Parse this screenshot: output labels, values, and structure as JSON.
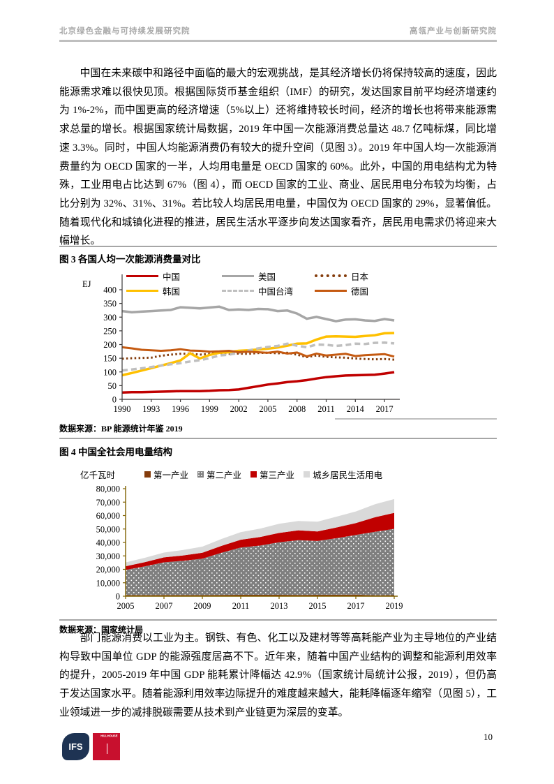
{
  "header": {
    "left": "北京绿色金融与可持续发展研究院",
    "right": "高瓴产业与创新研究院"
  },
  "paragraphs": {
    "p1": "中国在未来碳中和路径中面临的最大的宏观挑战，是其经济增长仍将保持较高的速度，因此能源需求难以很快见顶。根据国际货币基金组织（IMF）的研究，发达国家目前平均经济增速约为 1%-2%，而中国更高的经济增速（5%以上）还将维持较长时间，经济的增长也将带来能源需求总量的增长。根据国家统计局数据，2019 年中国一次能源消费总量达 48.7 亿吨标煤，同比增速 3.3%。同时，中国人均能源消费仍有较大的提升空间（见图 3）。2019 年中国人均一次能源消费量约为 OECD 国家的一半，人均用电量是 OECD 国家的 60%。此外，中国的用电结构尤为特殊，工业用电占比达到 67%（图 4），而 OECD 国家的工业、商业、居民用电分布较为均衡，占比分别为 32%、31%、31%。若比较人均居民用电量，中国仅为 OECD 国家的 29%，显著偏低。随着现代化和城镇化进程的推进，居民生活水平逐步向发达国家看齐，居民用电需求仍将迎来大幅增长。",
    "p2": "部门能源消费以工业为主。钢铁、有色、化工以及建材等等高耗能产业为主导地位的产业结构导致中国单位 GDP 的能源强度居高不下。近年来，随着中国产业结构的调整和能源利用效率的提升，2005-2019 年中国 GDP 能耗累计降幅达 42.9%（国家统计局统计公报，2019），但仍高于发达国家水平。随着能源利用效率边际提升的难度越来越大，能耗降幅逐年缩窄（见图 5），工业领域进一步的减排脱碳需要从技术到产业链更为深层的变革。"
  },
  "figure3": {
    "title": "图 3 各国人均一次能源消费量对比",
    "y_unit": "EJ",
    "source": "数据来源：BP 能源统计年鉴 2019"
  },
  "figure4": {
    "title": "图 4 中国全社会用电量结构",
    "y_unit": "亿千瓦时",
    "source": "数据来源：国家统计局"
  },
  "footer": {
    "ifs_label": "IFS",
    "ifs_color": "#1E3353",
    "hillhouse_label": "HILLHOUSE",
    "hillhouse_color": "#C8102E",
    "page_number": "10"
  },
  "chart_data": [
    {
      "type": "line",
      "title": "图 3 各国人均一次能源消费量对比",
      "ylabel": "EJ",
      "ylim": [
        0,
        400
      ],
      "ytick_step": 50,
      "axis_color": "#3B3838",
      "legend_position": "top",
      "grid": false,
      "x": [
        1990,
        1991,
        1992,
        1993,
        1994,
        1995,
        1996,
        1997,
        1998,
        1999,
        2000,
        2001,
        2002,
        2003,
        2004,
        2005,
        2006,
        2007,
        2008,
        2009,
        2010,
        2011,
        2012,
        2013,
        2014,
        2015,
        2016,
        2017,
        2018
      ],
      "xticks": [
        1990,
        1993,
        1996,
        1999,
        2002,
        2005,
        2008,
        2011,
        2014,
        2017
      ],
      "series": [
        {
          "name": "中国",
          "color": "#C00000",
          "style": "solid",
          "width": 3.5,
          "values": [
            25,
            26,
            26,
            27,
            28,
            29,
            30,
            30,
            30,
            31,
            33,
            34,
            36,
            42,
            48,
            54,
            58,
            63,
            66,
            70,
            76,
            81,
            84,
            87,
            88,
            89,
            90,
            94,
            99
          ]
        },
        {
          "name": "美国",
          "color": "#A6A6A6",
          "style": "solid",
          "width": 3.5,
          "values": [
            322,
            318,
            320,
            322,
            324,
            326,
            336,
            334,
            332,
            335,
            338,
            326,
            328,
            326,
            330,
            329,
            322,
            324,
            313,
            294,
            301,
            293,
            285,
            291,
            292,
            288,
            286,
            293,
            288
          ]
        },
        {
          "name": "日本",
          "color": "#843C0C",
          "style": "dotted",
          "width": 3,
          "values": [
            148,
            150,
            151,
            152,
            159,
            163,
            166,
            167,
            163,
            166,
            169,
            166,
            167,
            166,
            169,
            170,
            168,
            170,
            163,
            154,
            160,
            155,
            153,
            152,
            149,
            147,
            146,
            147,
            145
          ]
        },
        {
          "name": "韩国",
          "color": "#FFC000",
          "style": "solid",
          "width": 3.5,
          "values": [
            88,
            96,
            105,
            114,
            123,
            132,
            142,
            168,
            149,
            162,
            170,
            172,
            177,
            179,
            182,
            185,
            189,
            196,
            203,
            204,
            218,
            229,
            230,
            229,
            228,
            231,
            234,
            241,
            242
          ]
        },
        {
          "name": "中国台湾",
          "color": "#BFBFBF",
          "style": "dashed",
          "width": 3.5,
          "values": [
            105,
            109,
            113,
            118,
            123,
            128,
            132,
            138,
            143,
            150,
            160,
            163,
            170,
            178,
            186,
            191,
            195,
            203,
            196,
            190,
            200,
            199,
            195,
            198,
            203,
            202,
            206,
            207,
            204
          ]
        },
        {
          "name": "德国",
          "color": "#C55A11",
          "style": "solid",
          "width": 3,
          "values": [
            190,
            186,
            181,
            179,
            177,
            179,
            183,
            178,
            177,
            174,
            175,
            177,
            172,
            174,
            172,
            170,
            174,
            167,
            171,
            157,
            167,
            160,
            163,
            166,
            158,
            161,
            163,
            165,
            156
          ]
        }
      ]
    },
    {
      "type": "area",
      "stacked": true,
      "title": "图 4 中国全社会用电量结构",
      "ylabel": "亿千瓦时",
      "ylim": [
        0,
        80000
      ],
      "ytick_step": 10000,
      "axis_color": "#7F6000",
      "legend_position": "top",
      "grid": false,
      "x": [
        2005,
        2006,
        2007,
        2008,
        2009,
        2010,
        2011,
        2012,
        2013,
        2014,
        2015,
        2016,
        2017,
        2018,
        2019
      ],
      "xticks": [
        2005,
        2007,
        2009,
        2011,
        2013,
        2015,
        2017,
        2019
      ],
      "series": [
        {
          "name": "第一产业",
          "color": "#843C0C",
          "values": [
            915,
            830,
            945,
            915,
            950,
            985,
            1015,
            1015,
            1015,
            995,
            1020,
            1075,
            1155,
            730,
            780
          ]
        },
        {
          "name": "第二产业",
          "color": "#7F7F7F",
          "pattern": "dots",
          "values": [
            18637,
            21354,
            24269,
            25464,
            26940,
            31318,
            35185,
            36669,
            39143,
            40650,
            40046,
            42108,
            44413,
            47235,
            49362
          ]
        },
        {
          "name": "第三产业",
          "color": "#C00000",
          "values": [
            2758,
            3181,
            3646,
            3972,
            4425,
            5166,
            5822,
            6369,
            6899,
            7370,
            7158,
            7961,
            8814,
            10801,
            11863
          ]
        },
        {
          "name": "城乡居民生活用电",
          "color": "#D9D9D9",
          "values": [
            2838,
            3219,
            3623,
            4042,
            4571,
            5125,
            5646,
            6219,
            6793,
            6928,
            7276,
            8054,
            8695,
            9685,
            10250
          ]
        }
      ]
    }
  ]
}
